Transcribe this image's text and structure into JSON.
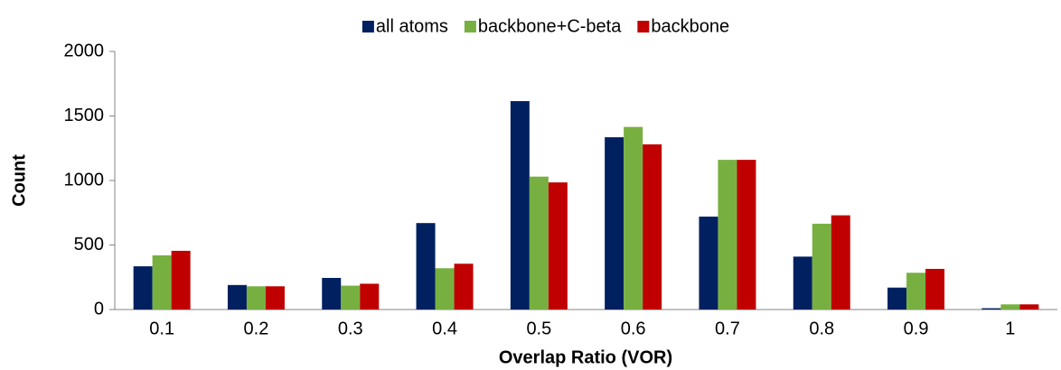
{
  "chart_data": {
    "type": "bar",
    "x_label": "Overlap Ratio (VOR)",
    "y_label": "Count",
    "categories": [
      "0.1",
      "0.2",
      "0.3",
      "0.4",
      "0.5",
      "0.6",
      "0.7",
      "0.8",
      "0.9",
      "1"
    ],
    "series": [
      {
        "name": "all atoms",
        "color": "#002060",
        "values": [
          335,
          190,
          245,
          670,
          1615,
          1335,
          720,
          410,
          170,
          10
        ]
      },
      {
        "name": "backbone+C-beta",
        "color": "#77b041",
        "values": [
          420,
          180,
          185,
          320,
          1030,
          1415,
          1160,
          665,
          285,
          40
        ]
      },
      {
        "name": "backbone",
        "color": "#c00000",
        "values": [
          455,
          180,
          200,
          355,
          985,
          1280,
          1160,
          730,
          315,
          40
        ]
      }
    ],
    "ylim": [
      0,
      2000
    ],
    "yticks": [
      0,
      500,
      1000,
      1500,
      2000
    ],
    "grid": false,
    "legend": "top"
  }
}
